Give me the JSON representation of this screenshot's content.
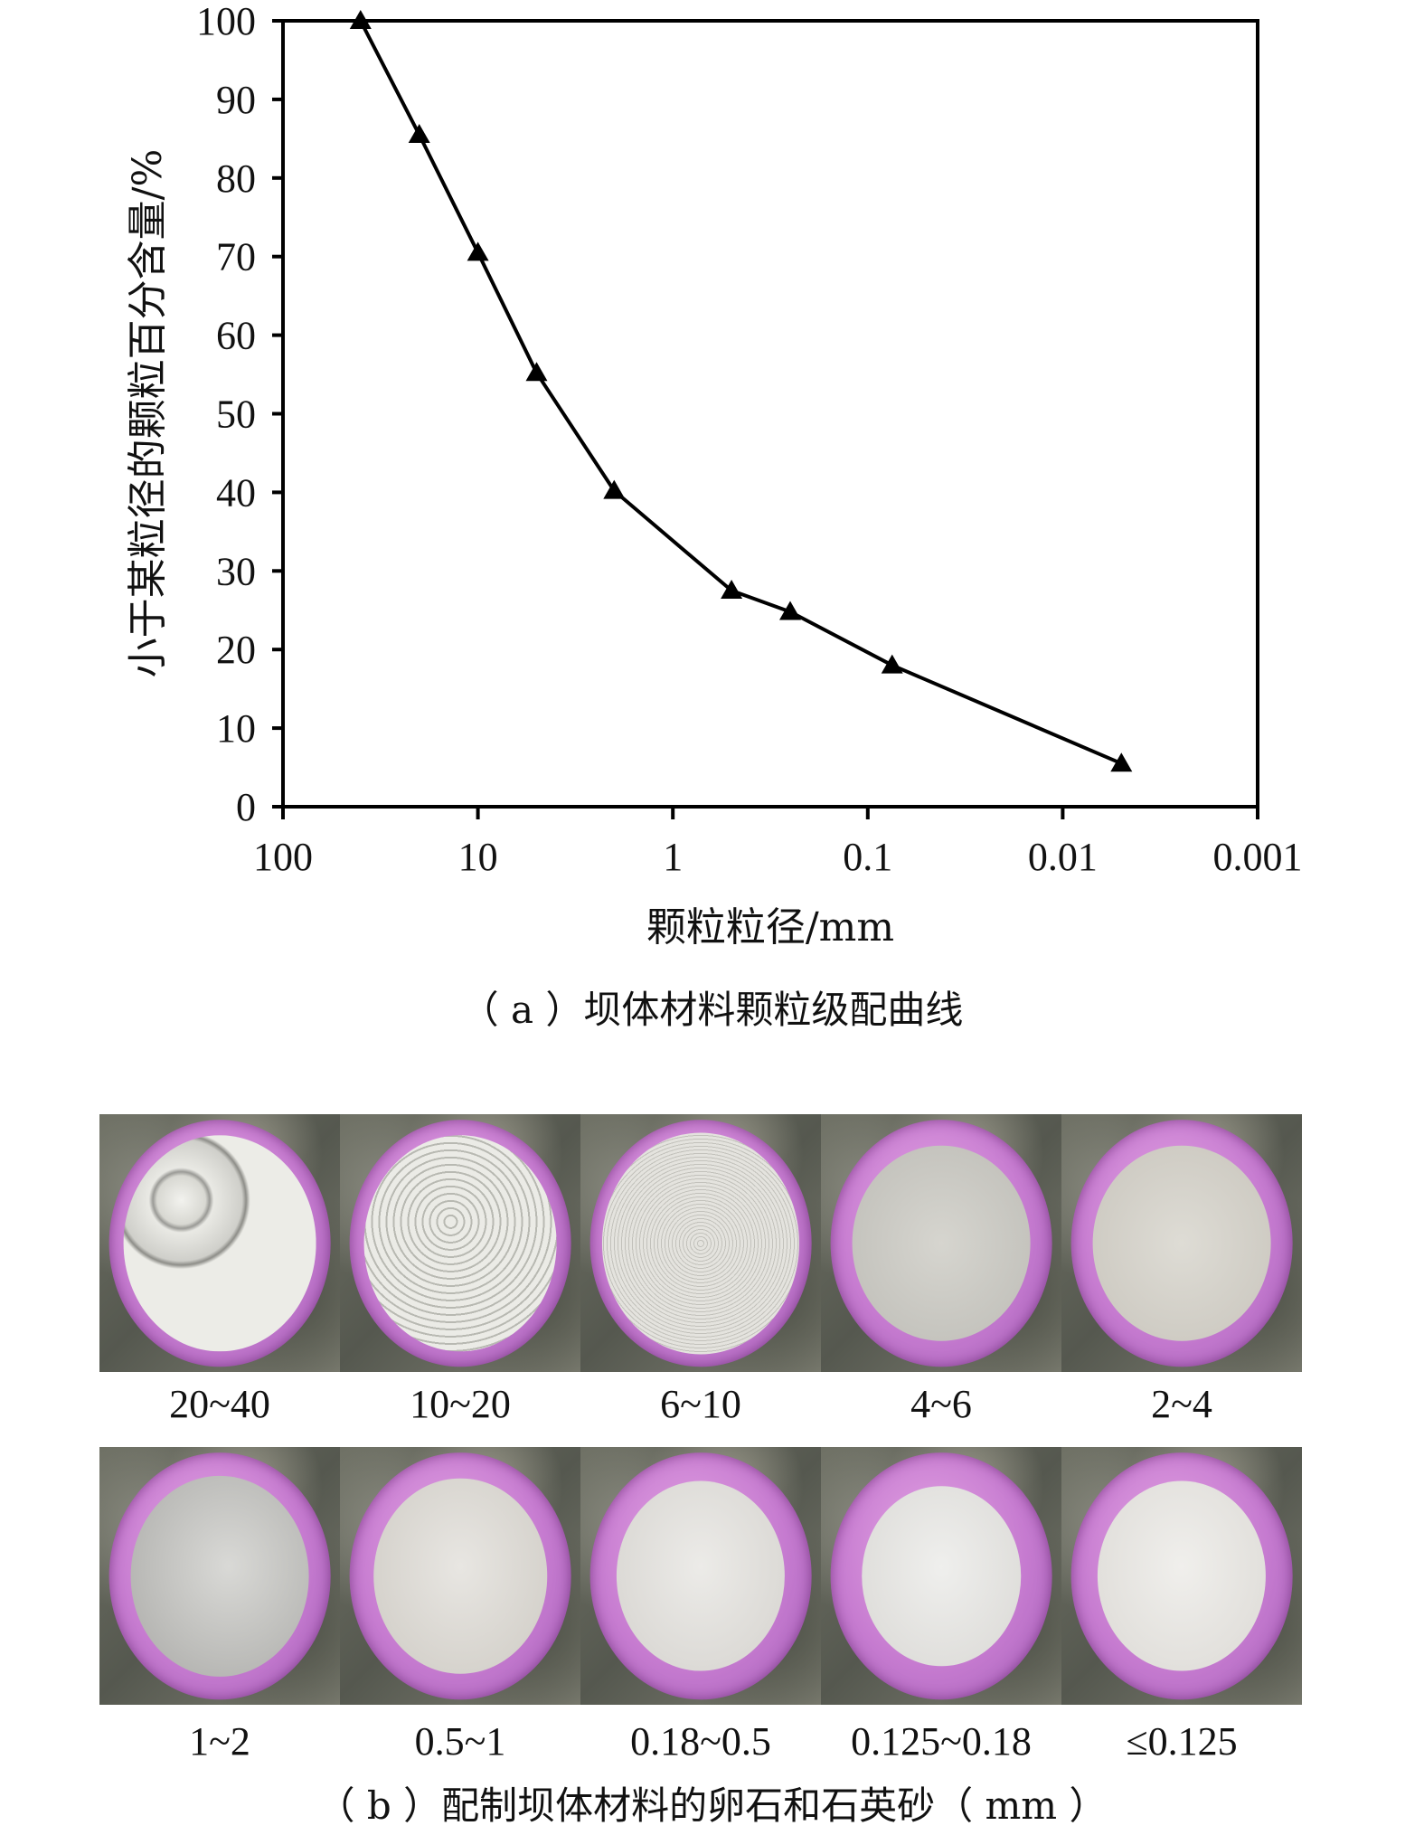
{
  "chart_data": {
    "type": "line",
    "x_scale": "log",
    "x_reversed": true,
    "xlim": [
      100,
      0.001
    ],
    "ylim": [
      0,
      100
    ],
    "x_ticks": [
      "100",
      "10",
      "1",
      "0.1",
      "0.01",
      "0.001"
    ],
    "y_ticks": [
      "0",
      "10",
      "20",
      "30",
      "40",
      "50",
      "60",
      "70",
      "80",
      "90",
      "100"
    ],
    "xlabel": "颗粒粒径/mm",
    "ylabel": "小于某粒径的颗粒百分含量/%",
    "marker": "triangle",
    "line_color": "#000000",
    "series": [
      {
        "x": [
          40,
          20,
          10,
          5,
          2,
          0.5,
          0.25,
          0.075,
          0.005
        ],
        "y": [
          100,
          85.5,
          70.5,
          55.2,
          40.2,
          27.5,
          24.8,
          18,
          5.5
        ]
      }
    ]
  },
  "captions": {
    "a": "（ a ）坝体材料颗粒级配曲线",
    "b": "（ b ）配制坝体材料的卵石和石英砂（ mm ）"
  },
  "photos": {
    "row1": [
      "20~40",
      "10~20",
      "6~10",
      "4~6",
      "2~4"
    ],
    "row2": [
      "1~2",
      "0.5~1",
      "0.18~0.5",
      "0.125~0.18",
      "≤0.125"
    ]
  },
  "colors": {
    "bowl": "#c67bd0",
    "background_stone": "#6e7064"
  }
}
